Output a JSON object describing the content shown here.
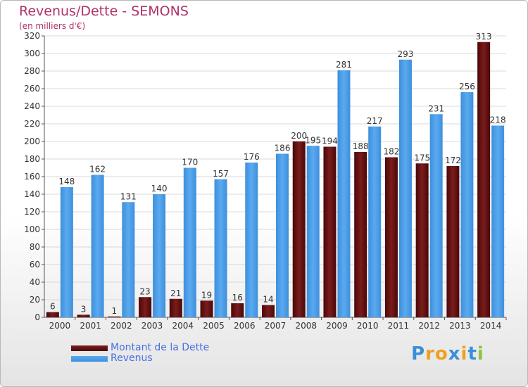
{
  "header": {
    "title": "Revenus/Dette - SEMONS",
    "subtitle": "(en milliers d'€)"
  },
  "colors": {
    "debt": "#7a1c1c",
    "debt_dark": "#4a0808",
    "revenue": "#3e8fdc",
    "revenue_light": "#5aaaf0",
    "title": "#b0306a",
    "legend_text": "#4a6fe0"
  },
  "chart_data": {
    "type": "bar",
    "title": "Revenus/Dette - SEMONS",
    "subtitle": "(en milliers d'€)",
    "categories": [
      "2000",
      "2001",
      "2002",
      "2003",
      "2004",
      "2005",
      "2006",
      "2007",
      "2008",
      "2009",
      "2010",
      "2011",
      "2012",
      "2013",
      "2014"
    ],
    "series": [
      {
        "name": "Montant de la Dette",
        "values": [
          6,
          3,
          1,
          23,
          21,
          19,
          16,
          14,
          200,
          194,
          188,
          182,
          175,
          172,
          313
        ]
      },
      {
        "name": "Revenus",
        "values": [
          148,
          162,
          131,
          140,
          170,
          157,
          176,
          186,
          195,
          281,
          217,
          293,
          231,
          256,
          218
        ]
      }
    ],
    "ylim": [
      0,
      320
    ],
    "yticks": [
      0,
      20,
      40,
      60,
      80,
      100,
      120,
      140,
      160,
      180,
      200,
      220,
      240,
      260,
      280,
      300,
      320
    ],
    "grid": true,
    "legend": "bottom-left"
  },
  "legend": {
    "items": [
      {
        "label": "Montant de la Dette",
        "icon": "debt-swatch"
      },
      {
        "label": "Revenus",
        "icon": "revenue-swatch"
      }
    ]
  },
  "logo": {
    "letters": [
      "P",
      "r",
      "o",
      "x",
      "i",
      "t",
      "i"
    ],
    "colors": [
      "#3a8fd8",
      "#f0a020",
      "#f0a020",
      "#3a8fd8",
      "#f0a020",
      "#3a8fd8",
      "#8fc23a"
    ]
  }
}
